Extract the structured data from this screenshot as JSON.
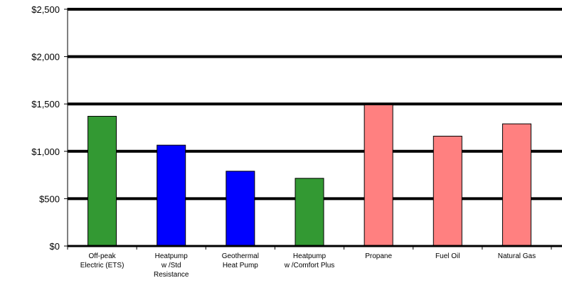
{
  "chart_data": {
    "type": "bar",
    "categories": [
      [
        "Off-peak",
        "Electric (ETS)"
      ],
      [
        "Heatpump",
        "w /Std",
        "Resistance"
      ],
      [
        "Geothermal",
        "Heat Pump"
      ],
      [
        "Heatpump",
        "w /Comfort Plus"
      ],
      [
        "Propane"
      ],
      [
        "Fuel Oil"
      ],
      [
        "Natural Gas"
      ]
    ],
    "values": [
      1370,
      1065,
      790,
      715,
      1490,
      1160,
      1290
    ],
    "colors": [
      "#339933",
      "#0000ff",
      "#0000ff",
      "#339933",
      "#ff8080",
      "#ff8080",
      "#ff8080"
    ],
    "ylim": [
      0,
      2500
    ],
    "yticks": [
      0,
      500,
      1000,
      1500,
      2000,
      2500
    ],
    "ytick_labels": [
      "$0",
      "$500",
      "$1,000",
      "$1,500",
      "$2,000",
      "$2,500"
    ],
    "grid": true,
    "title": "",
    "xlabel": "",
    "ylabel": ""
  }
}
